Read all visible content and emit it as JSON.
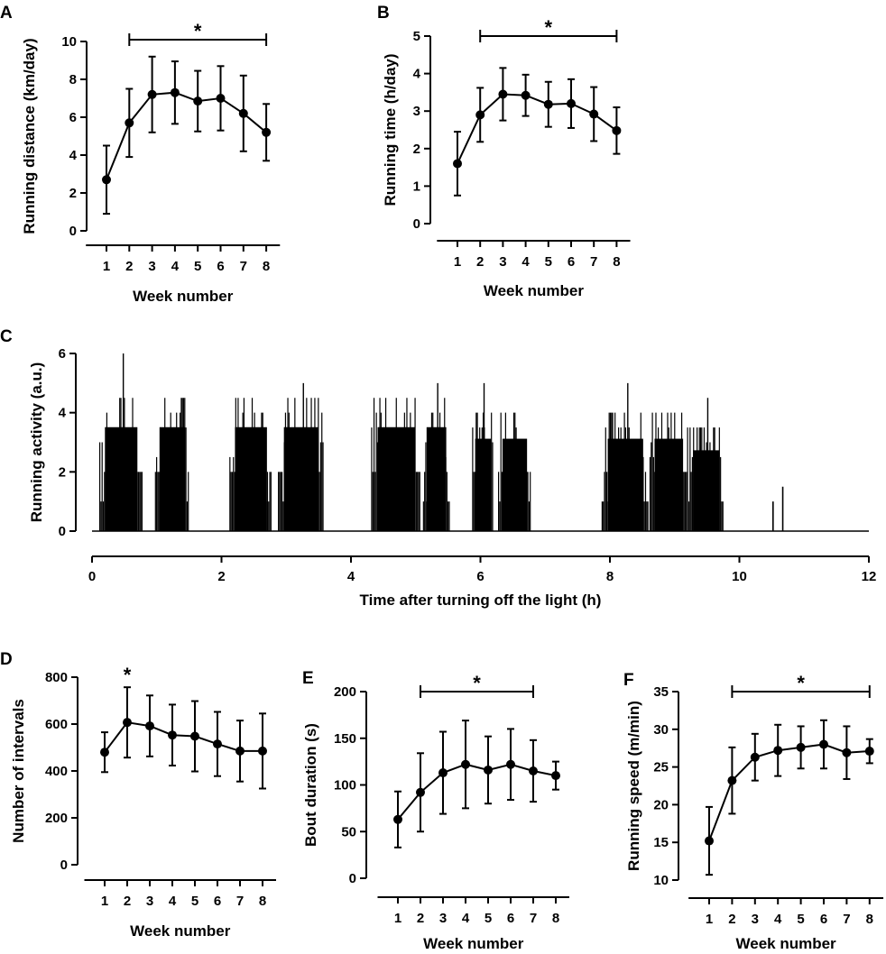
{
  "figure": {
    "panels": [
      "A",
      "B",
      "C",
      "D",
      "E",
      "F"
    ]
  },
  "chart_data": [
    {
      "id": "A",
      "type": "line",
      "title": "",
      "xlabel": "Week number",
      "ylabel": "Running distance (km/day)",
      "categories": [
        "1",
        "2",
        "3",
        "4",
        "5",
        "6",
        "7",
        "8"
      ],
      "series": [
        {
          "name": "Running distance",
          "values": [
            2.7,
            5.7,
            7.2,
            7.3,
            6.85,
            7.0,
            6.2,
            5.2
          ],
          "error": [
            1.8,
            1.8,
            2.0,
            1.65,
            1.6,
            1.7,
            2.0,
            1.5
          ]
        }
      ],
      "ylim": [
        0,
        10
      ],
      "yticks": [
        "0",
        "2",
        "4",
        "6",
        "8",
        "10"
      ],
      "significance": {
        "type": "bracket",
        "from": "2",
        "to": "8",
        "label": "*"
      }
    },
    {
      "id": "B",
      "type": "line",
      "title": "",
      "xlabel": "Week number",
      "ylabel": "Running time (h/day)",
      "categories": [
        "1",
        "2",
        "3",
        "4",
        "5",
        "6",
        "7",
        "8"
      ],
      "series": [
        {
          "name": "Running time",
          "values": [
            1.6,
            2.9,
            3.45,
            3.42,
            3.18,
            3.2,
            2.92,
            2.48
          ],
          "error": [
            0.85,
            0.72,
            0.7,
            0.55,
            0.6,
            0.65,
            0.72,
            0.62
          ]
        }
      ],
      "ylim": [
        0,
        5
      ],
      "yticks": [
        "0",
        "1",
        "2",
        "3",
        "4",
        "5"
      ],
      "significance": {
        "type": "bracket",
        "from": "2",
        "to": "8",
        "label": "*"
      }
    },
    {
      "id": "C",
      "type": "bar",
      "title": "",
      "xlabel": "Time after turning off the light (h)",
      "ylabel": "Running activity (a.u.)",
      "xlim": [
        0,
        12
      ],
      "ylim": [
        0,
        6
      ],
      "xticks": [
        "0",
        "2",
        "4",
        "6",
        "8",
        "10",
        "12"
      ],
      "yticks": [
        "0",
        "2",
        "4",
        "6"
      ],
      "activity_bouts": [
        {
          "start": 0.12,
          "end": 0.78,
          "level": 4.5,
          "peak": 6.0
        },
        {
          "start": 0.98,
          "end": 1.5,
          "level": 4.5,
          "peak": 4.5
        },
        {
          "start": 2.13,
          "end": 2.78,
          "level": 4.5,
          "peak": 4.5
        },
        {
          "start": 2.88,
          "end": 3.58,
          "level": 4.5,
          "peak": 5.0
        },
        {
          "start": 4.32,
          "end": 5.08,
          "level": 4.5,
          "peak": 4.5
        },
        {
          "start": 5.12,
          "end": 5.52,
          "level": 4.5,
          "peak": 5.0
        },
        {
          "start": 5.88,
          "end": 6.2,
          "level": 4.0,
          "peak": 5.0
        },
        {
          "start": 6.28,
          "end": 6.78,
          "level": 4.0,
          "peak": 4.0
        },
        {
          "start": 7.88,
          "end": 8.6,
          "level": 4.0,
          "peak": 5.0
        },
        {
          "start": 8.62,
          "end": 9.2,
          "level": 4.0,
          "peak": 4.0
        },
        {
          "start": 9.22,
          "end": 9.75,
          "level": 3.5,
          "peak": 4.5
        }
      ],
      "isolated_spikes": [
        {
          "x": 10.52,
          "value": 1.0
        },
        {
          "x": 10.67,
          "value": 1.5
        }
      ]
    },
    {
      "id": "D",
      "type": "line",
      "title": "",
      "xlabel": "Week number",
      "ylabel": "Number of intervals",
      "categories": [
        "1",
        "2",
        "3",
        "4",
        "5",
        "6",
        "7",
        "8"
      ],
      "series": [
        {
          "name": "Number of intervals",
          "values": [
            480,
            607,
            592,
            553,
            548,
            515,
            485,
            485
          ],
          "error": [
            85,
            150,
            130,
            130,
            150,
            137,
            130,
            160
          ]
        }
      ],
      "ylim": [
        0,
        800
      ],
      "yticks": [
        "0",
        "200",
        "400",
        "600",
        "800"
      ],
      "significance": {
        "type": "point",
        "at": "2",
        "label": "*"
      }
    },
    {
      "id": "E",
      "type": "line",
      "title": "",
      "xlabel": "Week number",
      "ylabel": "Bout duration (s)",
      "categories": [
        "1",
        "2",
        "3",
        "4",
        "5",
        "6",
        "7",
        "8"
      ],
      "series": [
        {
          "name": "Bout duration",
          "values": [
            63,
            92,
            113,
            122,
            116,
            122,
            115,
            110
          ],
          "error": [
            30,
            42,
            44,
            47,
            36,
            38,
            33,
            15
          ]
        }
      ],
      "ylim": [
        0,
        200
      ],
      "yticks": [
        "0",
        "50",
        "100",
        "150",
        "200"
      ],
      "significance": {
        "type": "bracket",
        "from": "2",
        "to": "7",
        "label": "*"
      }
    },
    {
      "id": "F",
      "type": "line",
      "title": "",
      "xlabel": "Week number",
      "ylabel": "Running speed (m/min)",
      "categories": [
        "1",
        "2",
        "3",
        "4",
        "5",
        "6",
        "7",
        "8"
      ],
      "series": [
        {
          "name": "Running speed",
          "values": [
            15.2,
            23.2,
            26.3,
            27.2,
            27.6,
            28.0,
            26.9,
            27.1
          ],
          "error": [
            4.5,
            4.4,
            3.1,
            3.4,
            2.8,
            3.2,
            3.5,
            1.6
          ]
        }
      ],
      "ylim": [
        10,
        35
      ],
      "yticks": [
        "10",
        "15",
        "20",
        "25",
        "30",
        "35"
      ],
      "significance": {
        "type": "bracket",
        "from": "2",
        "to": "8",
        "label": "*"
      }
    }
  ]
}
